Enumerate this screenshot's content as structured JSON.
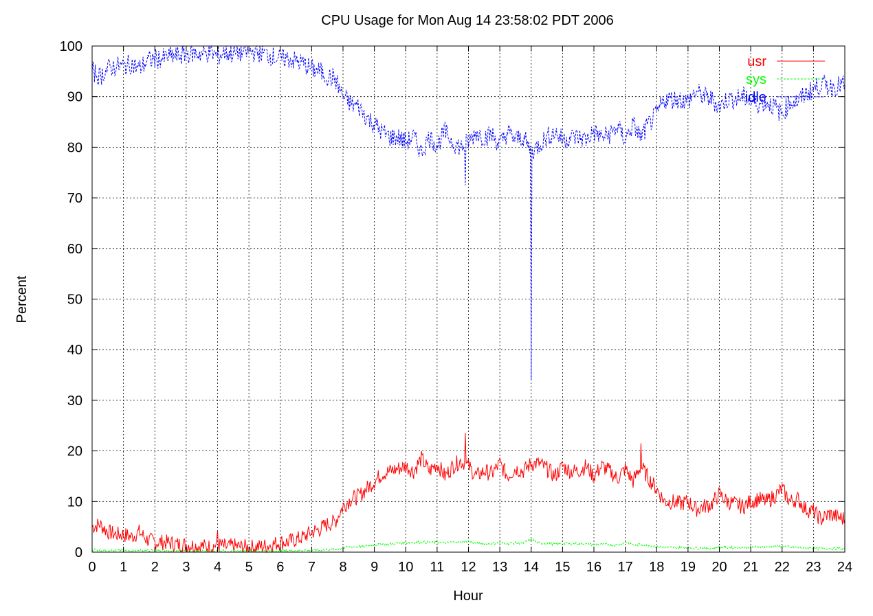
{
  "chart_data": {
    "type": "line",
    "title": "CPU Usage for Mon Aug 14 23:58:02 PDT 2006",
    "xlabel": "Hour",
    "ylabel": "Percent",
    "xlim": [
      0,
      24
    ],
    "ylim": [
      0,
      100
    ],
    "x_ticks": [
      0,
      1,
      2,
      3,
      4,
      5,
      6,
      7,
      8,
      9,
      10,
      11,
      12,
      13,
      14,
      15,
      16,
      17,
      18,
      19,
      20,
      21,
      22,
      23,
      24
    ],
    "y_ticks": [
      0,
      10,
      20,
      30,
      40,
      50,
      60,
      70,
      80,
      90,
      100
    ],
    "grid": true,
    "legend_position": "top-right",
    "x": [
      0.0,
      0.25,
      0.5,
      0.75,
      1.0,
      1.25,
      1.5,
      1.75,
      2.0,
      2.25,
      2.5,
      2.75,
      3.0,
      3.25,
      3.5,
      3.75,
      4.0,
      4.25,
      4.5,
      4.75,
      5.0,
      5.25,
      5.5,
      5.75,
      6.0,
      6.25,
      6.5,
      6.75,
      7.0,
      7.25,
      7.5,
      7.75,
      8.0,
      8.25,
      8.5,
      8.75,
      9.0,
      9.25,
      9.5,
      9.75,
      10.0,
      10.25,
      10.5,
      10.75,
      11.0,
      11.25,
      11.5,
      11.75,
      12.0,
      12.25,
      12.5,
      12.75,
      13.0,
      13.25,
      13.5,
      13.75,
      14.0,
      14.25,
      14.5,
      14.75,
      15.0,
      15.25,
      15.5,
      15.75,
      16.0,
      16.25,
      16.5,
      16.75,
      17.0,
      17.25,
      17.5,
      17.75,
      18.0,
      18.25,
      18.5,
      18.75,
      19.0,
      19.25,
      19.5,
      19.75,
      20.0,
      20.25,
      20.5,
      20.75,
      21.0,
      21.25,
      21.5,
      21.75,
      22.0,
      22.25,
      22.5,
      22.75,
      23.0,
      23.25,
      23.5,
      23.75,
      24.0
    ],
    "series": [
      {
        "name": "usr",
        "color": "#ff0000",
        "dash": "solid",
        "values": [
          5.0,
          5.5,
          4.0,
          3.5,
          3.5,
          3.0,
          4.0,
          2.5,
          2.0,
          2.0,
          1.8,
          1.5,
          1.5,
          1.3,
          1.2,
          1.0,
          1.5,
          1.0,
          1.2,
          1.0,
          1.0,
          1.0,
          1.2,
          1.5,
          2.0,
          2.0,
          2.5,
          3.0,
          4.0,
          4.5,
          5.5,
          6.0,
          9.0,
          10.5,
          11.0,
          12.5,
          14.0,
          15.5,
          16.0,
          16.5,
          17.0,
          16.0,
          18.5,
          16.0,
          17.5,
          15.0,
          17.0,
          18.0,
          17.0,
          15.0,
          16.0,
          15.5,
          17.5,
          15.0,
          16.5,
          16.0,
          17.5,
          17.5,
          16.5,
          15.0,
          17.0,
          16.0,
          16.0,
          17.0,
          15.0,
          17.0,
          16.0,
          14.5,
          16.5,
          14.0,
          17.0,
          14.5,
          12.5,
          10.0,
          10.0,
          9.5,
          10.0,
          8.5,
          9.0,
          9.5,
          11.5,
          10.0,
          9.5,
          9.0,
          10.0,
          10.5,
          10.0,
          11.0,
          12.5,
          10.0,
          10.5,
          8.5,
          8.0,
          6.5,
          7.5,
          7.0,
          6.5
        ]
      },
      {
        "name": "sys",
        "color": "#00ff00",
        "dash": "dashed",
        "values": [
          0.5,
          0.4,
          0.4,
          0.3,
          0.3,
          0.3,
          0.4,
          0.3,
          0.3,
          0.3,
          0.2,
          0.2,
          0.2,
          0.2,
          0.2,
          0.2,
          0.3,
          0.2,
          0.2,
          0.2,
          0.2,
          0.2,
          0.2,
          0.2,
          0.3,
          0.3,
          0.3,
          0.4,
          0.4,
          0.4,
          0.5,
          0.5,
          0.8,
          1.0,
          1.1,
          1.2,
          1.4,
          1.6,
          1.6,
          1.8,
          1.8,
          1.9,
          2.0,
          1.9,
          1.9,
          1.8,
          2.0,
          2.0,
          2.1,
          1.8,
          1.7,
          1.7,
          1.8,
          1.7,
          1.8,
          1.8,
          2.5,
          1.8,
          1.7,
          1.6,
          1.7,
          1.6,
          1.7,
          1.6,
          1.5,
          1.5,
          1.5,
          1.4,
          2.0,
          1.4,
          1.5,
          1.3,
          1.1,
          0.9,
          0.9,
          0.9,
          0.9,
          0.8,
          0.8,
          0.8,
          1.0,
          0.9,
          0.9,
          0.9,
          1.0,
          1.0,
          1.0,
          1.1,
          1.2,
          1.0,
          0.9,
          0.8,
          0.8,
          0.7,
          0.7,
          0.7,
          0.7
        ]
      },
      {
        "name": "idle",
        "color": "#0000ff",
        "dash": "dashed",
        "values": [
          95.0,
          94.0,
          95.5,
          96.0,
          96.0,
          96.5,
          95.5,
          97.0,
          97.5,
          97.5,
          98.0,
          98.0,
          98.5,
          98.5,
          98.5,
          98.8,
          98.0,
          98.8,
          98.5,
          98.8,
          98.8,
          98.8,
          98.5,
          98.0,
          97.5,
          97.5,
          97.0,
          96.5,
          95.5,
          95.0,
          94.0,
          93.5,
          90.0,
          88.5,
          88.0,
          86.0,
          84.5,
          83.0,
          82.0,
          82.0,
          81.0,
          82.0,
          79.0,
          82.0,
          80.5,
          83.0,
          81.0,
          80.0,
          81.0,
          83.0,
          82.0,
          82.5,
          80.5,
          83.0,
          81.5,
          82.0,
          79.0,
          80.5,
          82.0,
          83.0,
          81.5,
          82.0,
          82.0,
          81.5,
          83.0,
          82.0,
          82.5,
          84.0,
          81.5,
          84.5,
          82.0,
          84.5,
          86.5,
          89.5,
          89.5,
          89.5,
          89.0,
          91.0,
          90.0,
          89.5,
          88.0,
          89.5,
          89.5,
          90.0,
          89.0,
          88.5,
          89.0,
          88.0,
          86.5,
          89.0,
          89.0,
          90.5,
          91.5,
          92.5,
          92.0,
          92.0,
          92.5
        ]
      }
    ],
    "spikes": [
      {
        "series": "idle",
        "x": 14.0,
        "y": 34
      },
      {
        "series": "idle",
        "x": 11.9,
        "y": 72.5
      },
      {
        "series": "usr",
        "x": 11.9,
        "y": 23.5
      },
      {
        "series": "usr",
        "x": 17.5,
        "y": 21.5
      },
      {
        "series": "usr",
        "x": 4.0,
        "y": 4.2
      }
    ]
  }
}
